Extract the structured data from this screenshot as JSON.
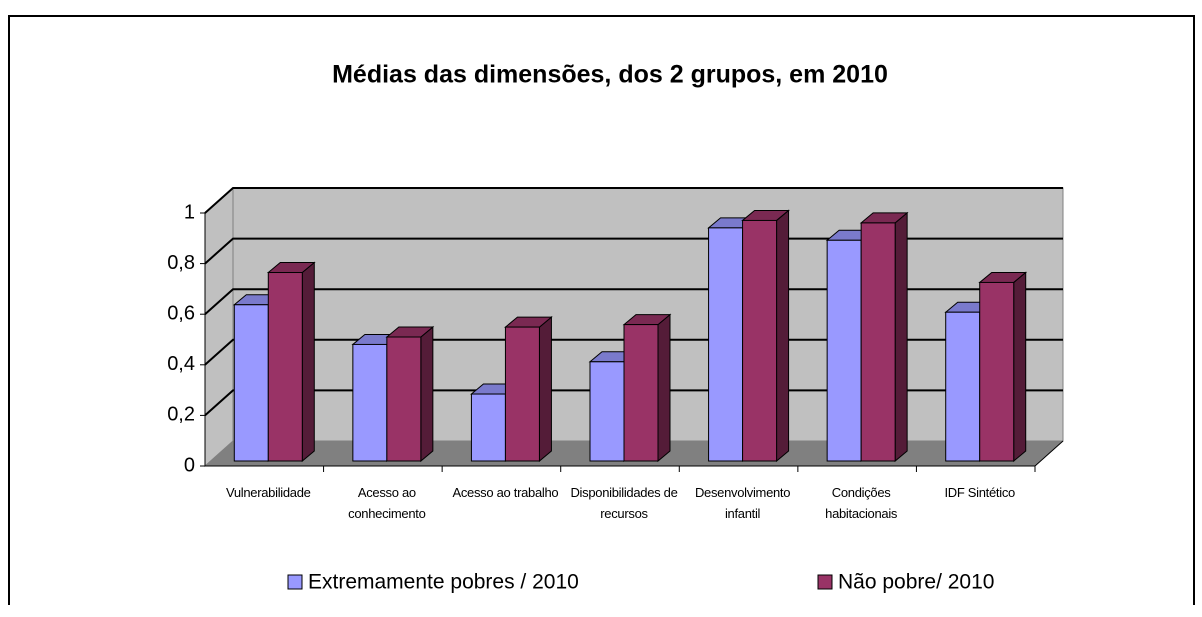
{
  "chart_data": {
    "type": "bar3d",
    "title": "Médias das dimensões, dos 2 grupos, em 2010",
    "categories": [
      "Vulnerabilidade",
      "Acesso ao conhecimento",
      "Acesso ao trabalho",
      "Disponibilidades de recursos",
      "Desenvolvimento infantil",
      "Condições habitacionais",
      "IDF Sintético"
    ],
    "series": [
      {
        "name": "Extremamente pobres / 2010",
        "color": "#9999ff",
        "values": [
          0.63,
          0.47,
          0.27,
          0.4,
          0.94,
          0.89,
          0.6
        ]
      },
      {
        "name": "Não pobre/ 2010",
        "color": "#993366",
        "values": [
          0.76,
          0.5,
          0.54,
          0.55,
          0.97,
          0.96,
          0.72
        ]
      }
    ],
    "ylim": [
      0,
      1
    ],
    "yticks": [
      0,
      {
        "value": 0.2,
        "label": "0,2"
      },
      {
        "value": 0.4,
        "label": "0,4"
      },
      {
        "value": 0.6,
        "label": "0,6"
      },
      {
        "value": 0.8,
        "label": "0,8"
      },
      1
    ],
    "grid": true
  }
}
